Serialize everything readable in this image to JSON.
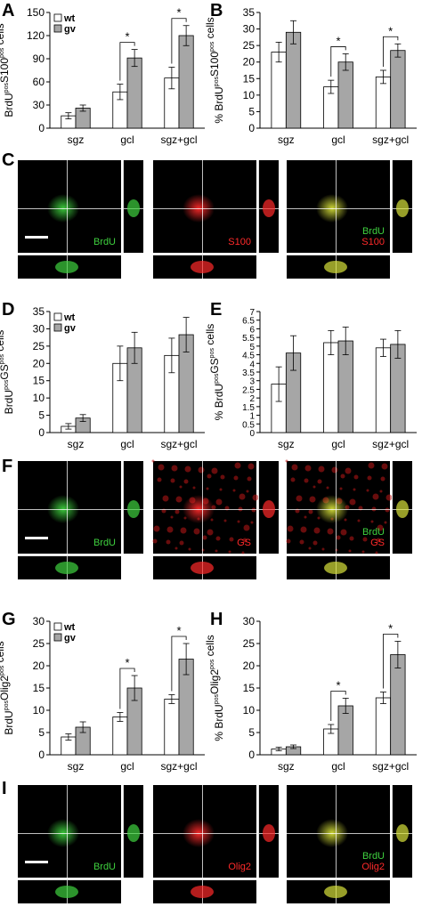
{
  "panels": {
    "A": {
      "letter": "A"
    },
    "B": {
      "letter": "B"
    },
    "C": {
      "letter": "C"
    },
    "D": {
      "letter": "D"
    },
    "E": {
      "letter": "E"
    },
    "F": {
      "letter": "F"
    },
    "G": {
      "letter": "G"
    },
    "H": {
      "letter": "H"
    },
    "I": {
      "letter": "I"
    }
  },
  "micrographs": {
    "C": [
      {
        "label1": "BrdU",
        "color1": "#3fd13f"
      },
      {
        "label1": "S100",
        "color1": "#ff2a2a"
      },
      {
        "label1": "BrdU",
        "color1": "#3fd13f",
        "label2": "S100",
        "color2": "#ff2a2a"
      }
    ],
    "F": [
      {
        "label1": "BrdU",
        "color1": "#3fd13f"
      },
      {
        "label1": "GS",
        "color1": "#ff2a2a"
      },
      {
        "label1": "BrdU",
        "color1": "#3fd13f",
        "label2": "GS",
        "color2": "#ff2a2a"
      }
    ],
    "I": [
      {
        "label1": "BrdU",
        "color1": "#3fd13f"
      },
      {
        "label1": "Olig2",
        "color1": "#ff2a2a"
      },
      {
        "label1": "BrdU",
        "color1": "#3fd13f",
        "label2": "Olig2",
        "color2": "#ff2a2a"
      }
    ]
  },
  "chart_data": [
    {
      "panel": "A",
      "type": "bar",
      "ylabel": "BrdU pos S100 pos cells",
      "ylabel_parts": [
        {
          "t": "BrdU"
        },
        {
          "t": "pos",
          "sup": true
        },
        {
          "t": "S100"
        },
        {
          "t": "pos",
          "sup": true
        },
        {
          "t": " cells"
        }
      ],
      "categories": [
        "sgz",
        "gcl",
        "sgz+gcl"
      ],
      "ylim": [
        0,
        150
      ],
      "yticks": [
        0,
        30,
        60,
        90,
        120,
        150
      ],
      "series": [
        {
          "name": "wt",
          "color": "#ffffff",
          "values": [
            16,
            47,
            65
          ],
          "errors": [
            4,
            10,
            14
          ]
        },
        {
          "name": "gv",
          "color": "#a6a6a6",
          "values": [
            26,
            91,
            120
          ],
          "errors": [
            4,
            11,
            13
          ]
        }
      ],
      "significance": [
        "",
        "*",
        "*"
      ],
      "legend": "top-left"
    },
    {
      "panel": "B",
      "type": "bar",
      "ylabel": "% BrdU pos S100 pos cells",
      "ylabel_parts": [
        {
          "t": "% BrdU"
        },
        {
          "t": "pos",
          "sup": true
        },
        {
          "t": "S100"
        },
        {
          "t": "pos",
          "sup": true
        },
        {
          "t": " cells"
        }
      ],
      "categories": [
        "sgz",
        "gcl",
        "sgz+gcl"
      ],
      "ylim": [
        0,
        35
      ],
      "yticks": [
        0,
        5,
        10,
        15,
        20,
        25,
        30,
        35
      ],
      "series": [
        {
          "name": "wt",
          "color": "#ffffff",
          "values": [
            23,
            12.5,
            15.5
          ],
          "errors": [
            3,
            2,
            2
          ]
        },
        {
          "name": "gv",
          "color": "#a6a6a6",
          "values": [
            29,
            20,
            23.5
          ],
          "errors": [
            3.5,
            2.5,
            2
          ]
        }
      ],
      "significance": [
        "",
        "*",
        "*"
      ]
    },
    {
      "panel": "D",
      "type": "bar",
      "ylabel": "BrdU pos GS pos cells",
      "ylabel_parts": [
        {
          "t": "BrdU"
        },
        {
          "t": "pos",
          "sup": true
        },
        {
          "t": "GS"
        },
        {
          "t": "pos",
          "sup": true
        },
        {
          "t": " cells"
        }
      ],
      "categories": [
        "sgz",
        "gcl",
        "sgz+gcl"
      ],
      "ylim": [
        0,
        35
      ],
      "yticks": [
        0,
        5,
        10,
        15,
        20,
        25,
        30,
        35
      ],
      "series": [
        {
          "name": "wt",
          "color": "#ffffff",
          "values": [
            1.8,
            20,
            22.3
          ],
          "errors": [
            0.8,
            5,
            5
          ]
        },
        {
          "name": "gv",
          "color": "#a6a6a6",
          "values": [
            4.2,
            24.5,
            28.3
          ],
          "errors": [
            1,
            4.5,
            5
          ]
        }
      ],
      "significance": [
        "",
        "",
        ""
      ],
      "legend": "top-left"
    },
    {
      "panel": "E",
      "type": "bar",
      "ylabel": "% BrdU pos GS pos cells",
      "ylabel_parts": [
        {
          "t": "% BrdU"
        },
        {
          "t": "pos",
          "sup": true
        },
        {
          "t": "GS"
        },
        {
          "t": "pos",
          "sup": true
        },
        {
          "t": " cells"
        }
      ],
      "categories": [
        "sgz",
        "gcl",
        "sgz+gcl"
      ],
      "ylim": [
        0,
        7
      ],
      "yticks": [
        0,
        0.5,
        1,
        1.5,
        2,
        2.5,
        3,
        3.5,
        4,
        4.5,
        5,
        5.5,
        6,
        6.5,
        7
      ],
      "ytick_labels": [
        "0",
        "0.5",
        "1",
        "1.5",
        "2",
        "2.5",
        "3",
        "3.5",
        "4",
        "4.5",
        "5",
        "5.5",
        "6",
        "6.5",
        "7"
      ],
      "series": [
        {
          "name": "wt",
          "color": "#ffffff",
          "values": [
            2.8,
            5.2,
            4.9
          ],
          "errors": [
            1,
            0.7,
            0.5
          ]
        },
        {
          "name": "gv",
          "color": "#a6a6a6",
          "values": [
            4.6,
            5.3,
            5.1
          ],
          "errors": [
            1,
            0.8,
            0.8
          ]
        }
      ],
      "significance": [
        "",
        "",
        ""
      ]
    },
    {
      "panel": "G",
      "type": "bar",
      "ylabel": "BrdU pos Olig2 pos cells",
      "ylabel_parts": [
        {
          "t": "BrdU"
        },
        {
          "t": "pos",
          "sup": true
        },
        {
          "t": "Olig2"
        },
        {
          "t": "pos",
          "sup": true
        },
        {
          "t": " cells"
        }
      ],
      "categories": [
        "sgz",
        "gcl",
        "sgz+gcl"
      ],
      "ylim": [
        0,
        30
      ],
      "yticks": [
        0,
        5,
        10,
        15,
        20,
        25,
        30
      ],
      "series": [
        {
          "name": "wt",
          "color": "#ffffff",
          "values": [
            4,
            8.5,
            12.5
          ],
          "errors": [
            0.7,
            1,
            1
          ]
        },
        {
          "name": "gv",
          "color": "#a6a6a6",
          "values": [
            6.2,
            15,
            21.5
          ],
          "errors": [
            1.2,
            2.8,
            3.5
          ]
        }
      ],
      "significance": [
        "",
        "*",
        "*"
      ],
      "legend": "top-left"
    },
    {
      "panel": "H",
      "type": "bar",
      "ylabel": "% BrdU pos Olig2 pos cells",
      "ylabel_parts": [
        {
          "t": "% BrdU"
        },
        {
          "t": "pos",
          "sup": true
        },
        {
          "t": "Olig2"
        },
        {
          "t": "pos",
          "sup": true
        },
        {
          "t": " cells"
        }
      ],
      "categories": [
        "sgz",
        "gcl",
        "sgz+gcl"
      ],
      "ylim": [
        0,
        30
      ],
      "yticks": [
        0,
        5,
        10,
        15,
        20,
        25,
        30
      ],
      "series": [
        {
          "name": "wt",
          "color": "#ffffff",
          "values": [
            1.3,
            5.8,
            12.8
          ],
          "errors": [
            0.4,
            1,
            1.3
          ]
        },
        {
          "name": "gv",
          "color": "#a6a6a6",
          "values": [
            1.8,
            11,
            22.5
          ],
          "errors": [
            0.4,
            1.7,
            3
          ]
        }
      ],
      "significance": [
        "",
        "*",
        "*"
      ]
    }
  ]
}
